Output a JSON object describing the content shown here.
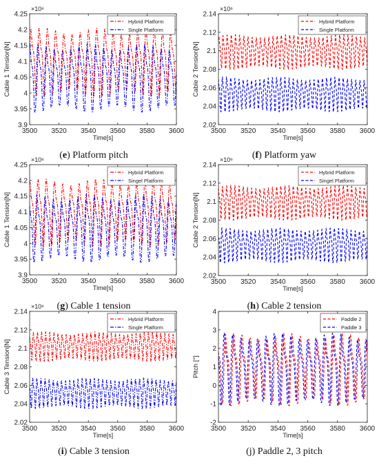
{
  "chart_data": [
    {
      "id": "e",
      "type": "line",
      "caption_letter": "e",
      "caption_text": "Platform pitch",
      "title": "",
      "xlabel": "Time[s]",
      "ylabel": "Cable 1 Tension[N]",
      "exponent": "×10⁶",
      "xlim": [
        3500,
        3600
      ],
      "ylim": [
        3.9,
        4.25
      ],
      "xticks": [
        3500,
        3520,
        3540,
        3560,
        3580,
        3600
      ],
      "yticks": [
        3.9,
        3.95,
        4,
        4.05,
        4.1,
        4.15,
        4.2,
        4.25
      ],
      "grid": false,
      "legend_position": "top-right",
      "series": [
        {
          "name": "Hybrid Platform",
          "color": "#ff0000",
          "dash": "dashdot",
          "period": 5.6,
          "min": 3.99,
          "max": 4.22
        },
        {
          "name": "Single Platform",
          "color": "#0000ff",
          "dash": "dashdot",
          "period": 5.6,
          "min": 3.94,
          "max": 4.17
        }
      ]
    },
    {
      "id": "f",
      "type": "line",
      "caption_letter": "f",
      "caption_text": "Platform yaw",
      "title": "",
      "xlabel": "Time[s]",
      "ylabel": "Cable 2 Tension[N]",
      "exponent": "×10⁶",
      "xlim": [
        3500,
        3600
      ],
      "ylim": [
        2.02,
        2.14
      ],
      "xticks": [
        3500,
        3520,
        3540,
        3560,
        3580,
        3600
      ],
      "yticks": [
        2.02,
        2.04,
        2.06,
        2.08,
        2.1,
        2.12,
        2.14
      ],
      "grid": false,
      "legend_position": "top-right",
      "series": [
        {
          "name": "Hybrid Platform",
          "color": "#ff0000",
          "dash": "dash",
          "period": 2.8,
          "min": 2.08,
          "max": 2.12
        },
        {
          "name": "Single Platform",
          "color": "#0000ff",
          "dash": "dash",
          "period": 2.8,
          "min": 2.034,
          "max": 2.074
        }
      ]
    },
    {
      "id": "g",
      "type": "line",
      "caption_letter": "g",
      "caption_text": "Cable 1 tension",
      "title": "",
      "xlabel": "Time[s]",
      "ylabel": "Cable 1 Tension[N]",
      "exponent": "×10⁶",
      "xlim": [
        3500,
        3600
      ],
      "ylim": [
        3.9,
        4.25
      ],
      "xticks": [
        3500,
        3520,
        3540,
        3560,
        3580,
        3600
      ],
      "yticks": [
        3.9,
        3.95,
        4,
        4.05,
        4.1,
        4.15,
        4.2,
        4.25
      ],
      "grid": false,
      "legend_position": "top-right",
      "series": [
        {
          "name": "Hybrid Platform",
          "color": "#ff0000",
          "dash": "dashdot",
          "period": 5.6,
          "min": 3.99,
          "max": 4.22
        },
        {
          "name": "Singel Platform",
          "color": "#0000ff",
          "dash": "dashdot",
          "period": 5.6,
          "min": 3.94,
          "max": 4.17
        }
      ]
    },
    {
      "id": "h",
      "type": "line",
      "caption_letter": "h",
      "caption_text": "Cable 2 tension",
      "title": "",
      "xlabel": "Time[s]",
      "ylabel": "Cable 2 Tension[N]",
      "exponent": "×10⁶",
      "xlim": [
        3500,
        3600
      ],
      "ylim": [
        2.02,
        2.14
      ],
      "xticks": [
        3500,
        3520,
        3540,
        3560,
        3580,
        3600
      ],
      "yticks": [
        2.02,
        2.04,
        2.06,
        2.08,
        2.1,
        2.12,
        2.14
      ],
      "grid": false,
      "legend_position": "top-right",
      "series": [
        {
          "name": "Hybrid Platform",
          "color": "#ff0000",
          "dash": "dash",
          "period": 2.8,
          "min": 2.08,
          "max": 2.12
        },
        {
          "name": "Singel Platform",
          "color": "#0000ff",
          "dash": "dash",
          "period": 2.8,
          "min": 2.034,
          "max": 2.074
        }
      ]
    },
    {
      "id": "i",
      "type": "line",
      "caption_letter": "i",
      "caption_text": "Cable 3 tension",
      "title": "",
      "xlabel": "Time[s]",
      "ylabel": "Cable 3 Tension[N]",
      "exponent": "×10⁶",
      "xlim": [
        3500,
        3600
      ],
      "ylim": [
        2.02,
        2.14
      ],
      "xticks": [
        3500,
        3520,
        3540,
        3560,
        3580,
        3600
      ],
      "yticks": [
        2.02,
        2.04,
        2.06,
        2.08,
        2.1,
        2.12,
        2.14
      ],
      "grid": false,
      "legend_position": "top-right",
      "series": [
        {
          "name": "Hybrid Platform",
          "color": "#ff0000",
          "dash": "dashdot",
          "period": 2.8,
          "min": 2.086,
          "max": 2.12
        },
        {
          "name": "Single Platform",
          "color": "#0000ff",
          "dash": "dashdot",
          "period": 2.8,
          "min": 2.035,
          "max": 2.07
        }
      ]
    },
    {
      "id": "j",
      "type": "line",
      "caption_letter": "j",
      "caption_text": "Paddle 2, 3 pitch",
      "caption_plain": "(j) Paddle 2, 3 pitch",
      "title": "",
      "xlabel": "Time[s]",
      "ylabel": "Pitch [°]",
      "exponent": "",
      "xlim": [
        3500,
        3600
      ],
      "ylim": [
        -2,
        4
      ],
      "xticks": [
        3500,
        3520,
        3540,
        3560,
        3580,
        3600
      ],
      "yticks": [
        -2,
        -1,
        0,
        1,
        2,
        3,
        4
      ],
      "grid": false,
      "legend_position": "top-right",
      "series": [
        {
          "name": "Paddle 2",
          "color": "#ff0000",
          "dash": "dash",
          "period": 5.6,
          "min": -1.1,
          "max": 3.1
        },
        {
          "name": "Paddle 3",
          "color": "#0000ff",
          "dash": "dash",
          "period": 5.6,
          "min": -1.1,
          "max": 3.1
        }
      ]
    }
  ]
}
